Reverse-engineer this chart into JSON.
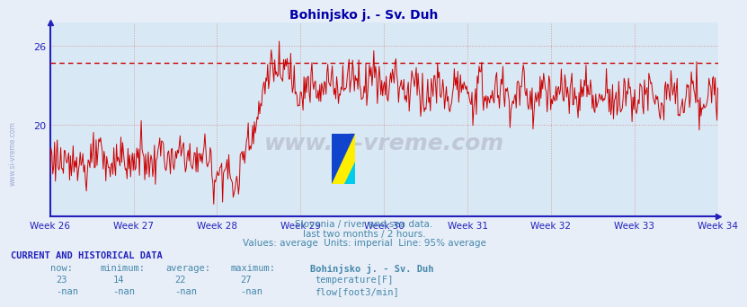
{
  "title": "Bohinjsko j. - Sv. Duh",
  "bg_color": "#e8eef8",
  "plot_bg_color": "#d8e8f5",
  "line_color": "#cc0000",
  "grid_color": "#dd9999",
  "axis_color": "#2222bb",
  "text_color": "#4488aa",
  "title_color": "#0000aa",
  "dashed_line_value": 24.7,
  "dashed_line_color": "#cc0000",
  "yticks": [
    20,
    26
  ],
  "ymin": 13.0,
  "ymax": 27.8,
  "weeks": [
    "Week 26",
    "Week 27",
    "Week 28",
    "Week 29",
    "Week 30",
    "Week 31",
    "Week 32",
    "Week 33",
    "Week 34"
  ],
  "subtitle1": "Slovenia / river and sea data.",
  "subtitle2": "last two months / 2 hours.",
  "subtitle3": "Values: average  Units: imperial  Line: 95% average",
  "footer_header": "CURRENT AND HISTORICAL DATA",
  "col_now": "now:",
  "col_min": "minimum:",
  "col_avg": "average:",
  "col_max": "maximum:",
  "station": "Bohinjsko j. - Sv. Duh",
  "val_now": "23",
  "val_min": "14",
  "val_avg": "22",
  "val_max": "27",
  "nan_val": "-nan",
  "temp_label": "temperature[F]",
  "flow_label": "flow[foot3/min]",
  "temp_color": "#cc0000",
  "flow_color": "#00aa00",
  "watermark": "www.si-vreme.com",
  "side_watermark": "www.si-vreme.com"
}
